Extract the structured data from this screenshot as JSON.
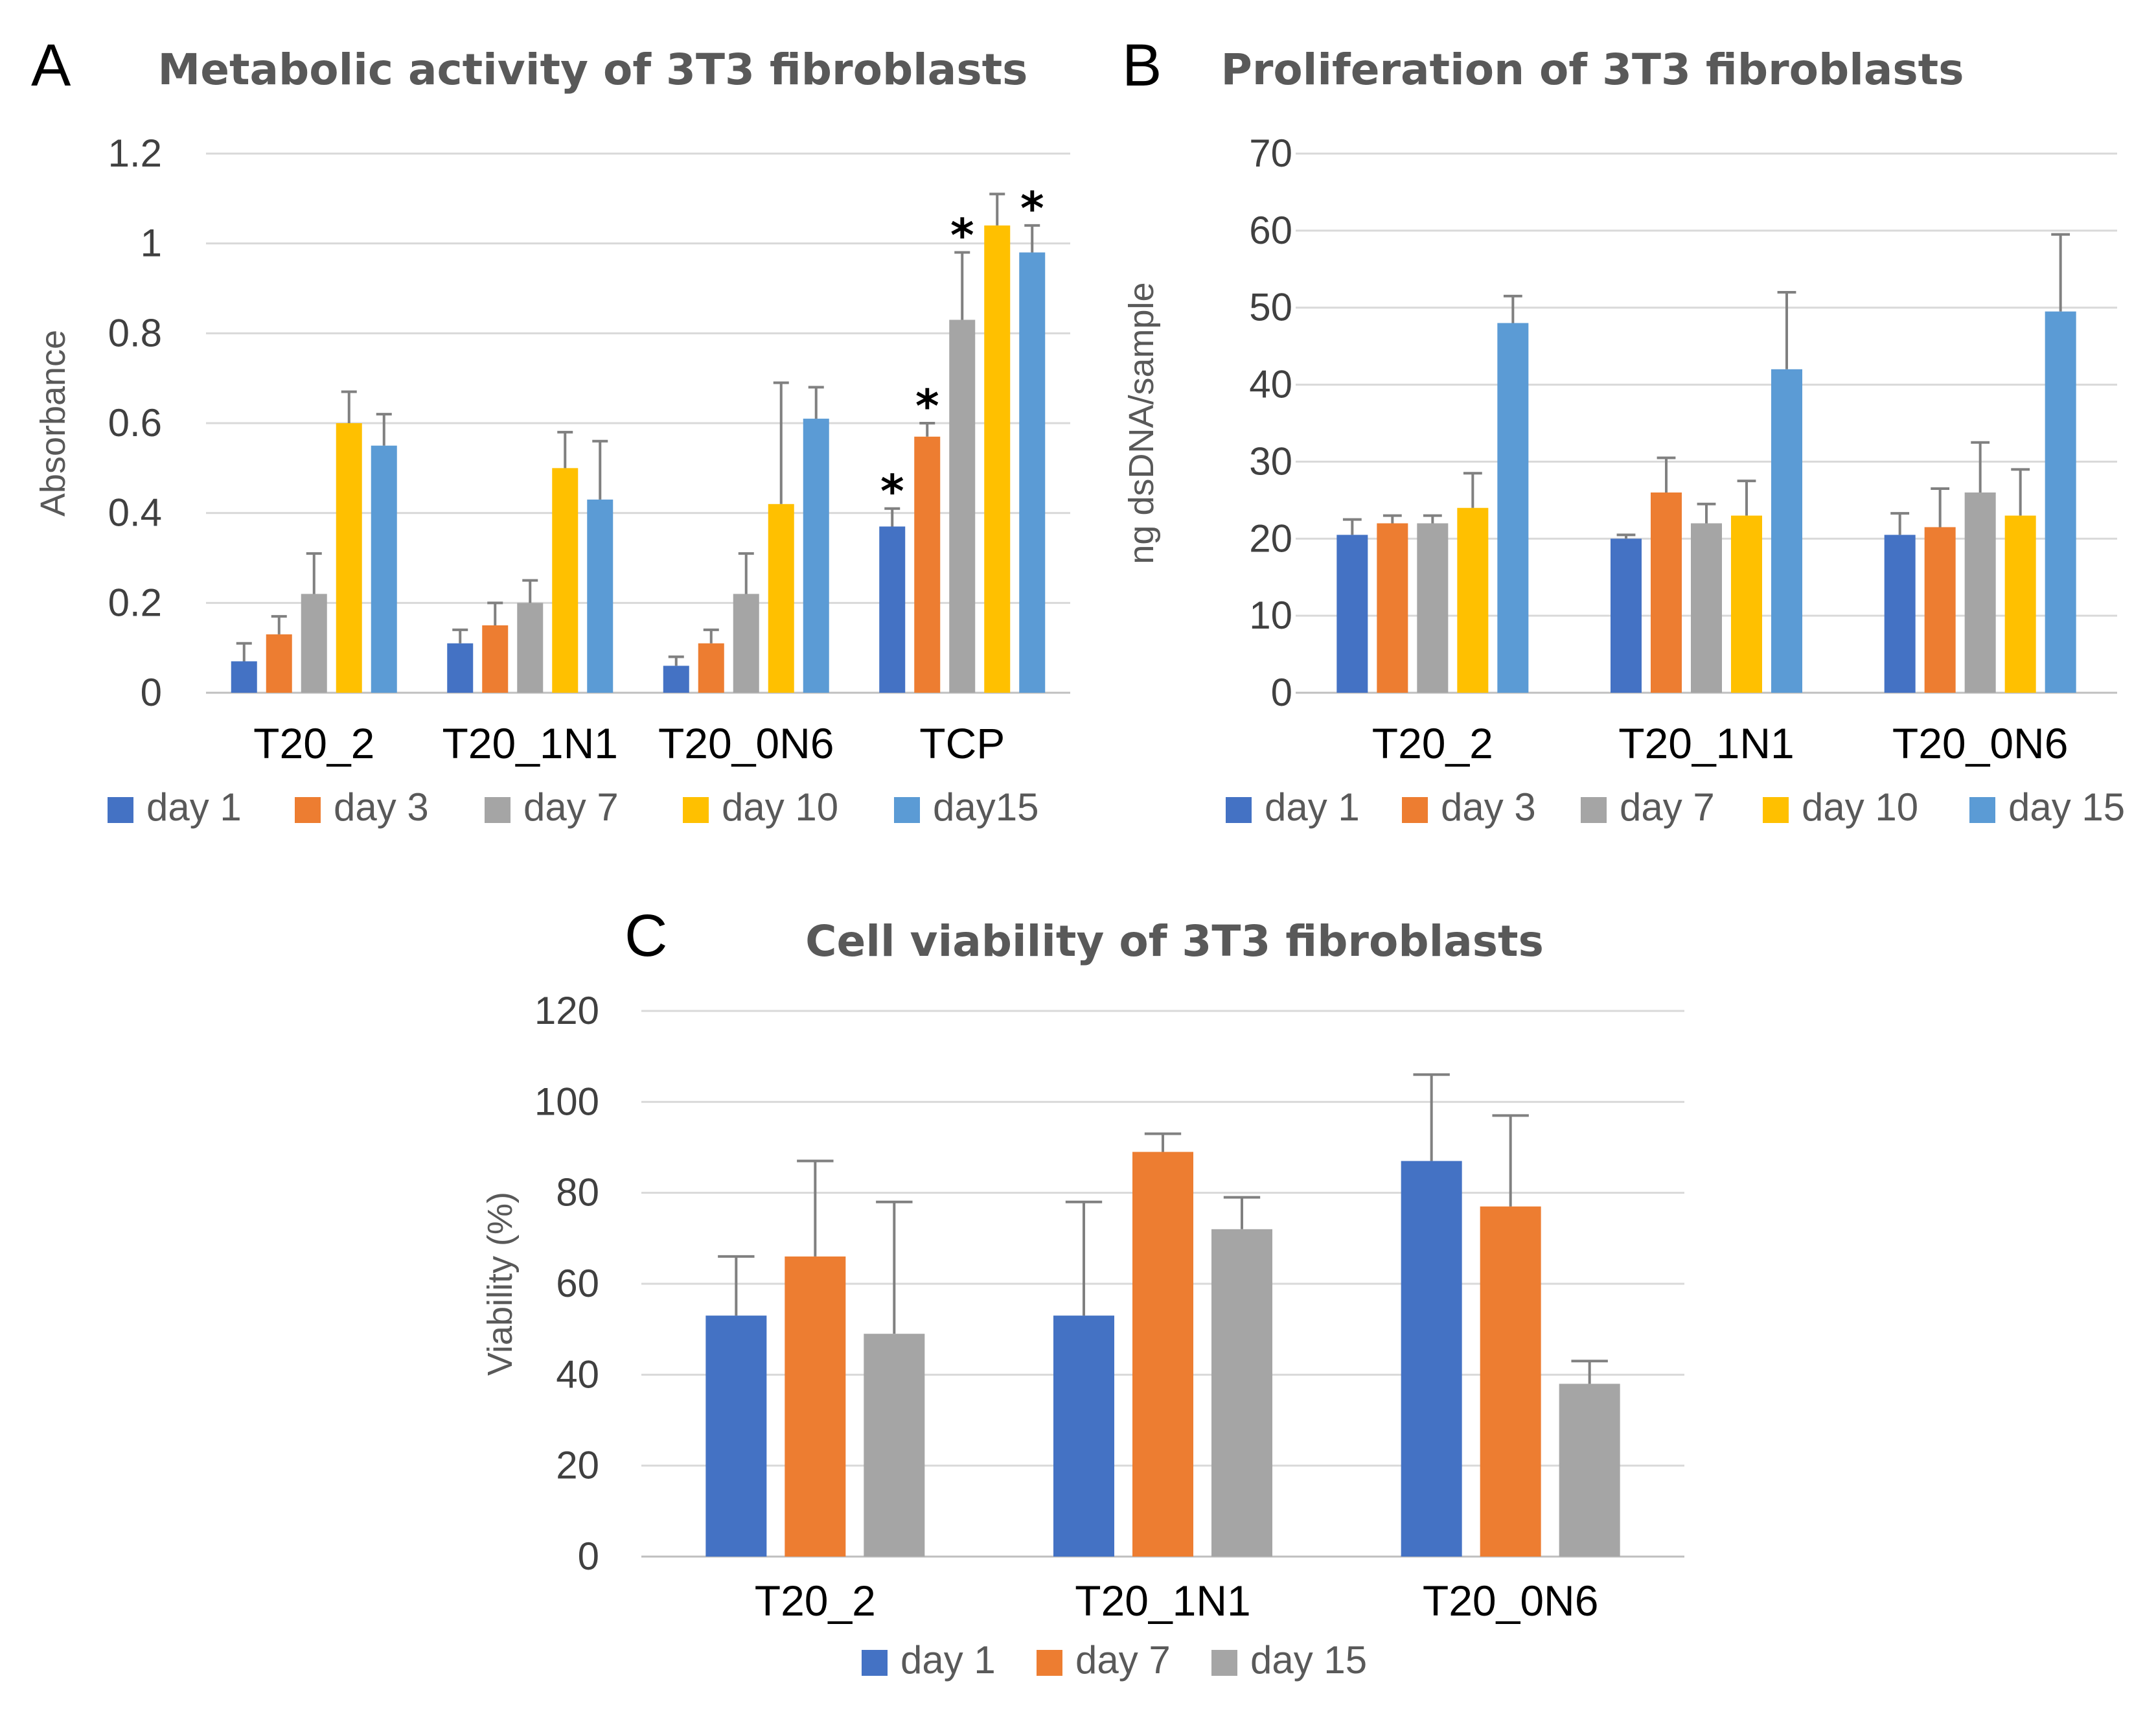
{
  "chart_data": [
    {
      "panel": "A",
      "type": "bar",
      "title": "Metabolic activity of 3T3 fibroblasts",
      "xlabel": "",
      "ylabel": "Absorbance",
      "ylim": [
        0,
        1.2
      ],
      "yticks": [
        "0",
        "0.2",
        "0.4",
        "0.6",
        "0.8",
        "1",
        "1.2"
      ],
      "grid": true,
      "legend_position": "bottom",
      "categories": [
        "T20_2",
        "T20_1N1",
        "T20_0N6",
        "TCP"
      ],
      "series": [
        {
          "name": "day 1",
          "color": "#4472C4",
          "values": [
            0.07,
            0.11,
            0.06,
            0.37
          ],
          "errors": [
            0.04,
            0.03,
            0.02,
            0.04
          ],
          "stars": [
            false,
            false,
            false,
            true
          ]
        },
        {
          "name": "day 3",
          "color": "#ED7D31",
          "values": [
            0.13,
            0.15,
            0.11,
            0.57
          ],
          "errors": [
            0.04,
            0.05,
            0.03,
            0.03
          ],
          "stars": [
            false,
            false,
            false,
            true
          ]
        },
        {
          "name": "day 7",
          "color": "#A5A5A5",
          "values": [
            0.22,
            0.2,
            0.22,
            0.83
          ],
          "errors": [
            0.09,
            0.05,
            0.09,
            0.15
          ],
          "stars": [
            false,
            false,
            false,
            true
          ]
        },
        {
          "name": "day 10",
          "color": "#FFC000",
          "values": [
            0.6,
            0.5,
            0.42,
            1.04
          ],
          "errors": [
            0.07,
            0.08,
            0.27,
            0.07
          ],
          "stars": [
            false,
            false,
            false,
            false
          ]
        },
        {
          "name": "day15",
          "color": "#5B9BD5",
          "values": [
            0.55,
            0.43,
            0.61,
            0.98
          ],
          "errors": [
            0.07,
            0.13,
            0.07,
            0.06
          ],
          "stars": [
            false,
            false,
            false,
            true
          ]
        }
      ]
    },
    {
      "panel": "B",
      "type": "bar",
      "title": "Proliferation of 3T3 fibroblasts",
      "xlabel": "",
      "ylabel": "ng dsDNA/sample",
      "ylim": [
        0,
        70
      ],
      "yticks": [
        "0",
        "10",
        "20",
        "30",
        "40",
        "50",
        "60",
        "70"
      ],
      "grid": true,
      "legend_position": "bottom",
      "categories": [
        "T20_2",
        "T20_1N1",
        "T20_0N6"
      ],
      "series": [
        {
          "name": "day 1",
          "color": "#4472C4",
          "values": [
            20.5,
            20.0,
            20.5
          ],
          "errors": [
            2.0,
            0.5,
            2.8
          ]
        },
        {
          "name": "day 3",
          "color": "#ED7D31",
          "values": [
            22.0,
            26.0,
            21.5
          ],
          "errors": [
            1.0,
            4.5,
            5.0
          ]
        },
        {
          "name": "day 7",
          "color": "#A5A5A5",
          "values": [
            22.0,
            22.0,
            26.0
          ],
          "errors": [
            1.0,
            2.5,
            6.5
          ]
        },
        {
          "name": "day 10",
          "color": "#FFC000",
          "values": [
            24.0,
            23.0,
            23.0
          ],
          "errors": [
            4.5,
            4.5,
            6.0
          ]
        },
        {
          "name": "day 15",
          "color": "#5B9BD5",
          "values": [
            48.0,
            42.0,
            49.5
          ],
          "errors": [
            3.5,
            10.0,
            10.0
          ]
        }
      ]
    },
    {
      "panel": "C",
      "type": "bar",
      "title": "Cell viability of 3T3 fibroblasts",
      "xlabel": "",
      "ylabel": "Viability (%)",
      "ylim": [
        0,
        120
      ],
      "yticks": [
        "0",
        "20",
        "40",
        "60",
        "80",
        "100",
        "120"
      ],
      "grid": true,
      "legend_position": "bottom",
      "categories": [
        "T20_2",
        "T20_1N1",
        "T20_0N6"
      ],
      "series": [
        {
          "name": "day 1",
          "color": "#4472C4",
          "values": [
            53,
            53,
            87
          ],
          "errors": [
            13,
            25,
            19
          ]
        },
        {
          "name": "day 7",
          "color": "#ED7D31",
          "values": [
            66,
            89,
            77
          ],
          "errors": [
            21,
            4,
            20
          ]
        },
        {
          "name": "day 15",
          "color": "#A5A5A5",
          "values": [
            49,
            72,
            38
          ],
          "errors": [
            29,
            7,
            5
          ]
        }
      ]
    }
  ],
  "star_symbol": "*",
  "errorbar_color": "#808080",
  "grid_color": "#D9D9D9"
}
